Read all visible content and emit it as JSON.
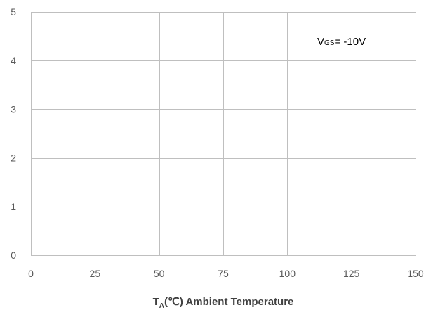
{
  "chart_data": {
    "type": "line",
    "title": "",
    "x": [],
    "series": [],
    "xlim": [
      0,
      150
    ],
    "ylim": [
      0,
      5
    ],
    "xticks": [
      "0",
      "25",
      "50",
      "75",
      "100",
      "125",
      "150"
    ],
    "yticks": [
      "0",
      "1",
      "2",
      "3",
      "4",
      "5"
    ],
    "grid": true,
    "ylabel": "",
    "xlabel": {
      "main": "T",
      "subscript": "A",
      "rest": "(℃) Ambient Temperature"
    },
    "annotation": {
      "main": "V",
      "subscript": "GS",
      "rest": "= -10V"
    },
    "colors": {
      "grid": "#bfbfbf",
      "axis_text": "#595959",
      "label_text": "#404040"
    }
  }
}
